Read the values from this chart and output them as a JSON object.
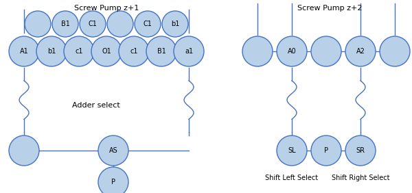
{
  "bg_color": "#ffffff",
  "circle_fill": "#b8d0e8",
  "circle_edge": "#4472c4",
  "line_color": "#4472c4",
  "title1": "Screw Pump z+1",
  "title2": "Screw Pump z+2",
  "label_adder": "Adder select",
  "label_shift_left": "Shift Left Select",
  "label_shift_right": "Shift Right Select",
  "top_row_labels": [
    "",
    "B1",
    "C1",
    "",
    "C1",
    "b1",
    ""
  ],
  "bot_row_labels": [
    "A1",
    "b1",
    "c1",
    "O1",
    "c1",
    "B1",
    "a1"
  ],
  "right_row_labels": [
    "",
    "A0",
    "",
    "A2",
    ""
  ],
  "adder_labels": [
    "",
    "AS",
    ""
  ],
  "shift_labels": [
    "SL",
    "P",
    "SR"
  ],
  "p_label": "P",
  "figw": 6.0,
  "figh": 2.82,
  "dpi": 100
}
